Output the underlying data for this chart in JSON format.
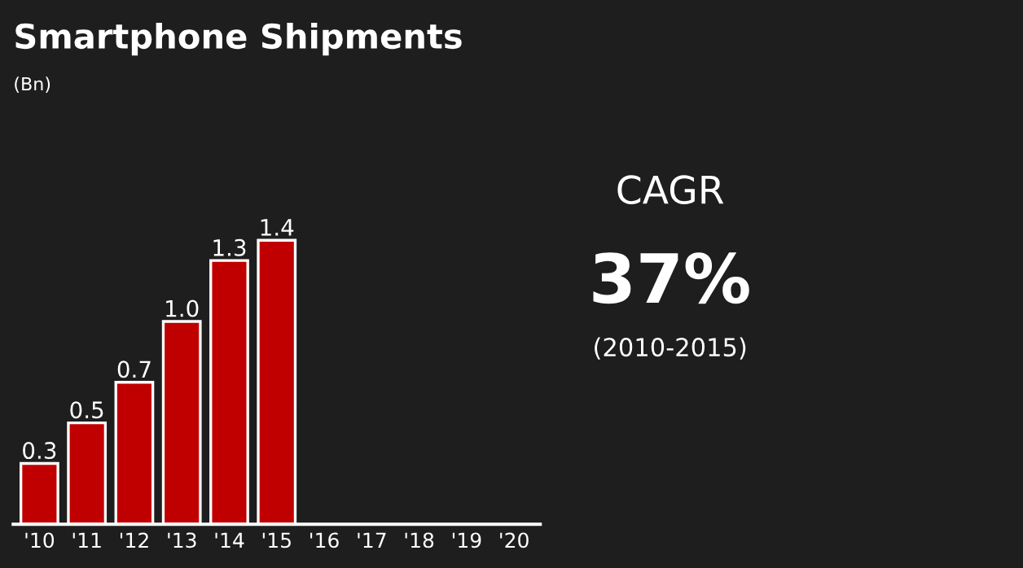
{
  "chart_data": {
    "type": "bar",
    "title": "Smartphone Shipments",
    "subtitle": "(Bn)",
    "categories": [
      "'10",
      "'11",
      "'12",
      "'13",
      "'14",
      "'15",
      "'16",
      "'17",
      "'18",
      "'19",
      "'20"
    ],
    "values": [
      0.3,
      0.5,
      0.7,
      1.0,
      1.3,
      1.4,
      null,
      null,
      null,
      null,
      null
    ],
    "value_labels": [
      "0.3",
      "0.5",
      "0.7",
      "1.0",
      "1.3",
      "1.4",
      null,
      null,
      null,
      null,
      null
    ],
    "color": "#c00000",
    "grid": false,
    "legend": false,
    "annotations": [
      "CAGR",
      "37%",
      "(2010-2015)"
    ]
  }
}
